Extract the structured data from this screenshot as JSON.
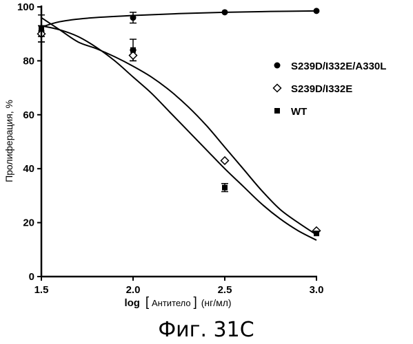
{
  "chart_data": {
    "type": "scatter",
    "xlabel_prefix": "log",
    "xlabel_main": "Антитело",
    "xlabel_units": "(нг/мл)",
    "ylabel": "Пролиферация, %",
    "xlim": [
      1.5,
      3.0
    ],
    "ylim": [
      0,
      100
    ],
    "x_ticks": [
      "1.5",
      "2.0",
      "2.5",
      "3.0"
    ],
    "y_ticks": [
      "0",
      "20",
      "40",
      "60",
      "80",
      "100"
    ],
    "legend_position": "right",
    "series": [
      {
        "name": "S239D/I332E/A330L",
        "marker": "circle",
        "x": [
          1.5,
          2.0,
          2.5,
          3.0
        ],
        "y": [
          91,
          96,
          98,
          98.5
        ],
        "err": [
          2,
          2,
          0,
          0
        ],
        "curve": {
          "x": [
            1.5,
            1.6,
            1.75,
            2.0,
            2.25,
            2.5,
            2.75,
            3.0
          ],
          "y": [
            92.5,
            94.5,
            95.8,
            96.8,
            97.5,
            98,
            98.3,
            98.5
          ]
        }
      },
      {
        "name": "S239D/I332E",
        "marker": "diamond",
        "x": [
          1.5,
          2.0,
          2.5,
          3.0
        ],
        "y": [
          90,
          82,
          43,
          17
        ],
        "err": [
          3,
          2,
          0,
          0
        ],
        "curve": {
          "x": [
            1.5,
            1.6,
            1.7,
            1.8,
            1.9,
            2.0,
            2.1,
            2.2,
            2.3,
            2.4,
            2.5,
            2.6,
            2.7,
            2.8,
            2.9,
            3.0
          ],
          "y": [
            93,
            91.5,
            89,
            85,
            80,
            74,
            68,
            61,
            54,
            47,
            40,
            33.5,
            27,
            21.5,
            17,
            13.5
          ]
        }
      },
      {
        "name": "WT",
        "marker": "square",
        "x": [
          1.5,
          2.0,
          2.5,
          3.0
        ],
        "y": [
          92,
          84,
          33,
          16
        ],
        "err": [
          5,
          4,
          1.5,
          0
        ],
        "curve": {
          "x": [
            1.5,
            1.6,
            1.7,
            1.8,
            1.9,
            2.0,
            2.1,
            2.2,
            2.3,
            2.4,
            2.5,
            2.6,
            2.7,
            2.8,
            2.9,
            3.0
          ],
          "y": [
            96,
            91.5,
            87,
            84.5,
            81.5,
            78,
            74,
            69,
            63,
            56,
            48,
            40,
            32,
            25,
            20,
            15.5
          ]
        }
      }
    ]
  },
  "caption": "Фиг. 31С"
}
